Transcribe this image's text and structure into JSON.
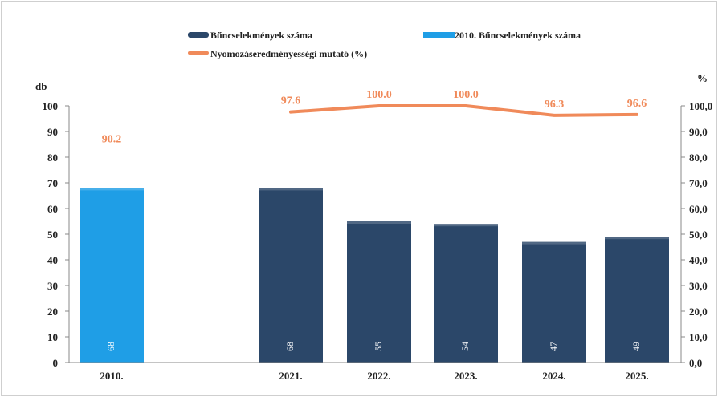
{
  "chart_data": {
    "type": "bar",
    "categories": [
      "2010.",
      "",
      "2021.",
      "2022.",
      "2023.",
      "2024.",
      "2025."
    ],
    "series": [
      {
        "name": "Bűncselekmények száma",
        "kind": "bar",
        "color": "#2b4769",
        "values": [
          null,
          null,
          68,
          55,
          54,
          47,
          49
        ]
      },
      {
        "name": "2010. Bűncselekmények száma",
        "kind": "bar",
        "color": "#1f9ee6",
        "values": [
          68,
          null,
          null,
          null,
          null,
          null,
          null
        ]
      },
      {
        "name": "Nyomozáseredményességi mutató (%)",
        "kind": "line",
        "axis": "right",
        "color": "#f08a5a",
        "values": [
          90.2,
          null,
          97.6,
          100.0,
          100.0,
          96.3,
          96.6
        ],
        "labels": [
          "90.2",
          "",
          "97.6",
          "100.0",
          "100.0",
          "96.3",
          "96.6"
        ]
      }
    ],
    "bar_labels": [
      "68",
      "",
      "68",
      "55",
      "54",
      "47",
      "49"
    ],
    "y_left": {
      "label": "db",
      "ylim": [
        0,
        100
      ],
      "ticks": [
        "0",
        "10",
        "20",
        "30",
        "40",
        "50",
        "60",
        "70",
        "80",
        "90",
        "100"
      ]
    },
    "y_right": {
      "label": "%",
      "ylim": [
        0,
        100
      ],
      "ticks": [
        "0,0",
        "10,0",
        "20,0",
        "30,0",
        "40,0",
        "50,0",
        "60,0",
        "70,0",
        "80,0",
        "90,0",
        "100,0"
      ]
    },
    "legend_position": "top",
    "grid": false
  }
}
